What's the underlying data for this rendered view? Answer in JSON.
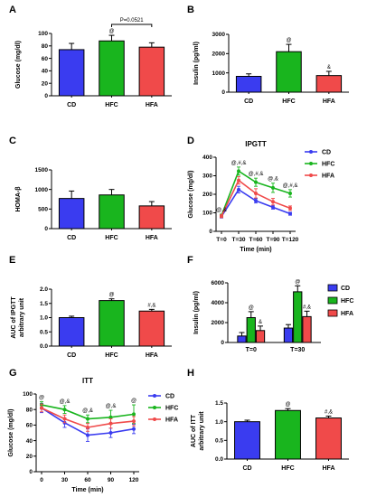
{
  "colors": {
    "CD": "#3a3cf0",
    "HFC": "#19b51e",
    "HFA": "#f04a4a",
    "axis": "#000000"
  },
  "chart_data": [
    {
      "id": "A",
      "panel_label": "A",
      "type": "bar",
      "ylabel": "Glucose (mg/dl)",
      "ylim": [
        0,
        100
      ],
      "yticks": [
        0,
        20,
        40,
        60,
        80,
        100
      ],
      "categories": [
        "CD",
        "HFC",
        "HFA"
      ],
      "values": [
        74,
        88,
        78
      ],
      "errors": [
        10,
        9,
        7
      ],
      "annotations": [
        "",
        "@",
        ""
      ],
      "bracket_label": "P=0.0521"
    },
    {
      "id": "B",
      "panel_label": "B",
      "type": "bar",
      "ylabel": "Insulin (pg/ml)",
      "ylim": [
        0,
        3000
      ],
      "yticks": [
        0,
        1000,
        2000,
        3000
      ],
      "categories": [
        "CD",
        "HFC",
        "HFA"
      ],
      "values": [
        820,
        2100,
        860
      ],
      "errors": [
        130,
        380,
        220
      ],
      "annotations": [
        "",
        "@",
        "&"
      ]
    },
    {
      "id": "C",
      "panel_label": "C",
      "type": "bar",
      "ylabel": "HOMA-β",
      "ylim": [
        0,
        1500
      ],
      "yticks": [
        0,
        500,
        1000,
        1500
      ],
      "categories": [
        "CD",
        "HFC",
        "HFA"
      ],
      "values": [
        770,
        860,
        580
      ],
      "errors": [
        190,
        140,
        110
      ],
      "annotations": [
        "",
        "",
        ""
      ]
    },
    {
      "id": "D",
      "panel_label": "D",
      "type": "line",
      "title": "IPGTT",
      "ylabel": "Glucose (mg/dl)",
      "xlabel": "Time (min)",
      "ylim": [
        0,
        400
      ],
      "yticks": [
        0,
        100,
        200,
        300,
        400
      ],
      "x": [
        "T=0",
        "T=30",
        "T=60",
        "T=90",
        "T=120"
      ],
      "series": [
        {
          "name": "CD",
          "values": [
            80,
            225,
            165,
            130,
            95
          ],
          "errors": [
            8,
            18,
            12,
            10,
            8
          ]
        },
        {
          "name": "HFC",
          "values": [
            85,
            325,
            265,
            235,
            205
          ],
          "errors": [
            8,
            22,
            22,
            25,
            20
          ]
        },
        {
          "name": "HFA",
          "values": [
            82,
            275,
            205,
            160,
            125
          ],
          "errors": [
            8,
            20,
            25,
            18,
            12
          ]
        }
      ],
      "annotations": [
        "@,&",
        "@,#,&",
        "@,#,&",
        "@,&",
        "@,#,&"
      ]
    },
    {
      "id": "E",
      "panel_label": "E",
      "type": "bar",
      "ylabel": "AUC of IPGTT",
      "ylabel2": "arbitrary unit",
      "ylim": [
        0,
        2.0
      ],
      "yticks": [
        0.0,
        0.5,
        1.0,
        1.5,
        2.0
      ],
      "categories": [
        "CD",
        "HFC",
        "HFA"
      ],
      "values": [
        1.0,
        1.6,
        1.23
      ],
      "errors": [
        0.05,
        0.06,
        0.06
      ],
      "annotations": [
        "",
        "@",
        "#,&"
      ]
    },
    {
      "id": "F",
      "panel_label": "F",
      "type": "bar",
      "ylabel": "Insulin (pg/ml)",
      "ylim": [
        0,
        6000
      ],
      "yticks": [
        0,
        2000,
        4000,
        6000
      ],
      "categories": [
        "T=0",
        "T=30"
      ],
      "series": [
        {
          "name": "CD",
          "values": [
            650,
            1450
          ],
          "errors": [
            350,
            350
          ]
        },
        {
          "name": "HFC",
          "values": [
            2500,
            5100
          ],
          "errors": [
            600,
            600
          ]
        },
        {
          "name": "HFA",
          "values": [
            1200,
            2600
          ],
          "errors": [
            450,
            550
          ]
        }
      ],
      "annotations": [
        [
          "",
          "@",
          "&"
        ],
        [
          "",
          "@",
          "#,&"
        ]
      ]
    },
    {
      "id": "G",
      "panel_label": "G",
      "type": "line",
      "title": "ITT",
      "ylabel": "Glucose (mg/dl)",
      "xlabel": "Time (min)",
      "ylim": [
        0,
        100
      ],
      "yticks": [
        0,
        20,
        40,
        60,
        80,
        100
      ],
      "x": [
        0,
        30,
        60,
        90,
        120
      ],
      "xticks": [
        "0",
        "30",
        "60",
        "90",
        "120"
      ],
      "series": [
        {
          "name": "CD",
          "values": [
            82,
            63,
            47,
            50,
            55
          ],
          "errors": [
            6,
            6,
            8,
            6,
            6
          ]
        },
        {
          "name": "HFC",
          "values": [
            86,
            80,
            68,
            70,
            74
          ],
          "errors": [
            4,
            5,
            5,
            9,
            12
          ]
        },
        {
          "name": "HFA",
          "values": [
            82,
            68,
            57,
            62,
            65
          ],
          "errors": [
            5,
            5,
            5,
            6,
            6
          ]
        }
      ],
      "annotations": [
        "@",
        "@,&",
        "@,&",
        "@,&",
        "@"
      ]
    },
    {
      "id": "H",
      "panel_label": "H",
      "type": "bar",
      "ylabel": "AUC of ITT",
      "ylabel2": "arbitrary unit",
      "ylim": [
        0,
        1.5
      ],
      "yticks": [
        0.0,
        0.5,
        1.0,
        1.5
      ],
      "categories": [
        "CD",
        "HFC",
        "HFA"
      ],
      "values": [
        1.0,
        1.3,
        1.1
      ],
      "errors": [
        0.04,
        0.05,
        0.05
      ],
      "annotations": [
        "",
        "@",
        "#,&"
      ]
    }
  ]
}
